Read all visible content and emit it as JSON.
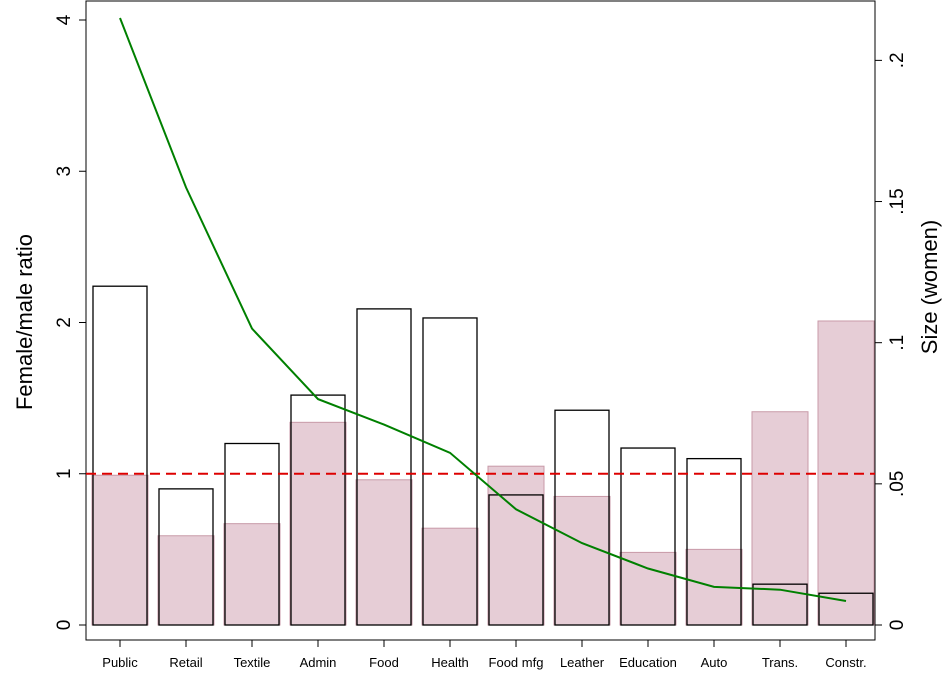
{
  "chart_data": {
    "type": "bar",
    "categories": [
      "Public",
      "Retail",
      "Textile",
      "Admin",
      "Food",
      "Health",
      "Food mfg",
      "Leather",
      "Education",
      "Auto",
      "Trans.",
      "Constr."
    ],
    "series": [
      {
        "values": [
          0.99,
          0.59,
          0.67,
          1.34,
          0.96,
          0.64,
          1.05,
          0.85,
          0.48,
          0.5,
          1.41,
          2.01
        ],
        "axis": "left",
        "style": "filled-bar"
      },
      {
        "values": [
          2.24,
          0.9,
          1.2,
          1.52,
          2.09,
          2.03,
          0.86,
          1.42,
          1.17,
          1.1,
          0.27,
          0.21
        ],
        "axis": "left",
        "style": "outlined-bar"
      },
      {
        "values": [
          0.215,
          0.155,
          0.105,
          0.08,
          0.071,
          0.061,
          0.041,
          0.029,
          0.02,
          0.0135,
          0.0125,
          0.0085
        ],
        "axis": "right",
        "style": "line"
      }
    ],
    "reference_line": {
      "y": 1,
      "axis": "left",
      "style": "dashed"
    },
    "ylabel": "Female/male ratio",
    "y2label": "Size (women)",
    "ylim": [
      0,
      4
    ],
    "y2lim": [
      0,
      0.2143
    ],
    "yticks": [
      "0",
      "1",
      "2",
      "3",
      "4"
    ],
    "y2ticks": [
      "0",
      ".05",
      ".1",
      ".15",
      ".2"
    ],
    "grid": false,
    "colors": {
      "filled_bar": "#e6cdd6",
      "filled_bar_edge": "#c89aa8",
      "outline_bar": "#000000",
      "line": "#008000",
      "reference": "#dd0000"
    }
  }
}
